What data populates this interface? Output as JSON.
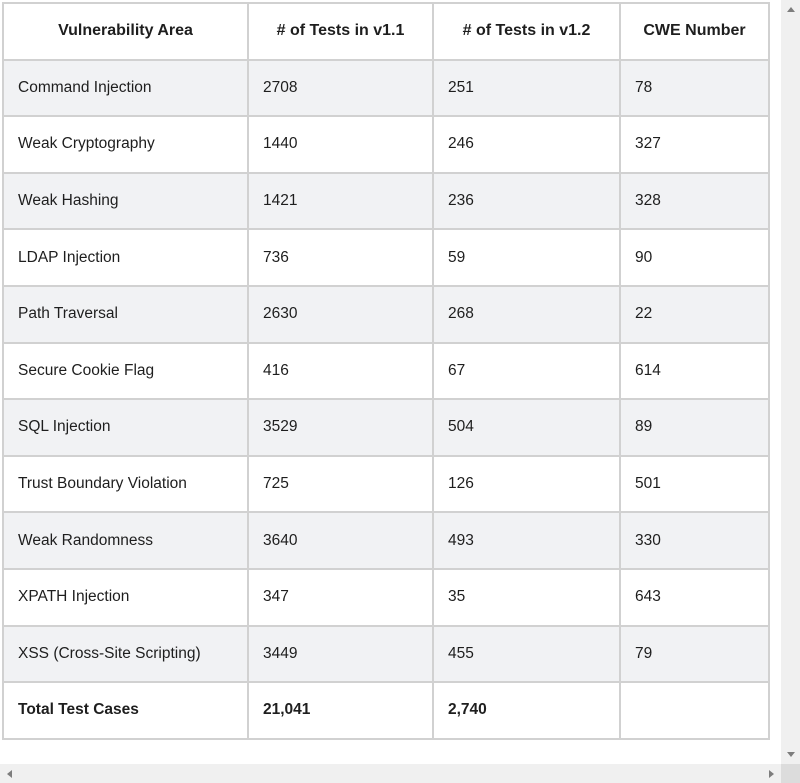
{
  "table": {
    "columns": [
      "Vulnerability Area",
      "# of Tests in v1.1",
      "# of Tests in v1.2",
      "CWE Number"
    ],
    "rows": [
      {
        "area": "Command Injection",
        "tests_v11": "2708",
        "tests_v12": "251",
        "cwe": "78"
      },
      {
        "area": "Weak Cryptography",
        "tests_v11": "1440",
        "tests_v12": "246",
        "cwe": "327"
      },
      {
        "area": "Weak Hashing",
        "tests_v11": "1421",
        "tests_v12": "236",
        "cwe": "328"
      },
      {
        "area": "LDAP Injection",
        "tests_v11": "736",
        "tests_v12": "59",
        "cwe": "90"
      },
      {
        "area": "Path Traversal",
        "tests_v11": "2630",
        "tests_v12": "268",
        "cwe": "22"
      },
      {
        "area": "Secure Cookie Flag",
        "tests_v11": "416",
        "tests_v12": "67",
        "cwe": "614"
      },
      {
        "area": "SQL Injection",
        "tests_v11": "3529",
        "tests_v12": "504",
        "cwe": "89"
      },
      {
        "area": "Trust Boundary Violation",
        "tests_v11": "725",
        "tests_v12": "126",
        "cwe": "501"
      },
      {
        "area": "Weak Randomness",
        "tests_v11": "3640",
        "tests_v12": "493",
        "cwe": "330"
      },
      {
        "area": "XPATH Injection",
        "tests_v11": "347",
        "tests_v12": "35",
        "cwe": "643"
      },
      {
        "area": "XSS (Cross-Site Scripting)",
        "tests_v11": "3449",
        "tests_v12": "455",
        "cwe": "79"
      }
    ],
    "total_row": {
      "label": "Total Test Cases",
      "tests_v11": "21,041",
      "tests_v12": "2,740",
      "cwe": ""
    }
  },
  "colors": {
    "row_alt_background": "#f1f2f4",
    "table_border": "#d1d1d1",
    "text": "#1e1e1e",
    "scrollbar_track": "#f0f0f0",
    "scrollbar_corner": "#dcdcdc",
    "scrollbar_arrow": "#7d7d7d"
  }
}
